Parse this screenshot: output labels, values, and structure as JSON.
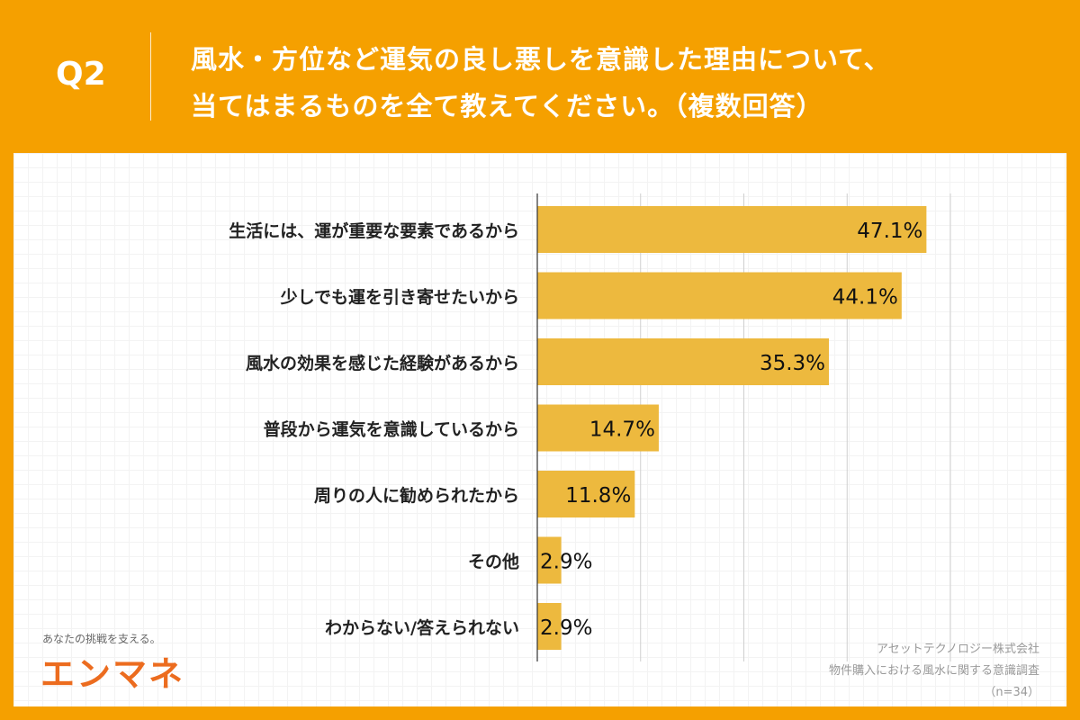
{
  "header": {
    "question_no": "Q2",
    "title": "風水・方位など運気の良し悪しを意識した理由について、\n当てはまるものを全て教えてください。（複数回答）"
  },
  "chart_data": {
    "type": "bar",
    "orientation": "horizontal",
    "categories": [
      "生活には、運が重要な要素であるから",
      "少しでも運を引き寄せたいから",
      "風水の効果を感じた経験があるから",
      "普段から運気を意識しているから",
      "周りの人に勧められたから",
      "その他",
      "わからない/答えられない"
    ],
    "values": [
      47.1,
      44.1,
      35.3,
      14.7,
      11.8,
      2.9,
      2.9
    ],
    "data_labels": [
      "47.1%",
      "44.1%",
      "35.3%",
      "14.7%",
      "11.8%",
      "2.9%",
      "2.9%"
    ],
    "xlim": [
      0,
      50
    ],
    "grid_x": [
      12.5,
      25,
      37.5,
      50
    ],
    "grid": true,
    "bar_color": "#EDB93E"
  },
  "branding": {
    "tagline": "あなたの挑戦を支える。",
    "logo": "エンマネ"
  },
  "source": {
    "company": "アセットテクノロジー株式会社",
    "survey": "物件購入における風水に関する意識調査",
    "n": "（n=34）"
  },
  "colors": {
    "frame": "#F5A000",
    "bar": "#EDB93E",
    "logo": "#EC6C1F"
  }
}
